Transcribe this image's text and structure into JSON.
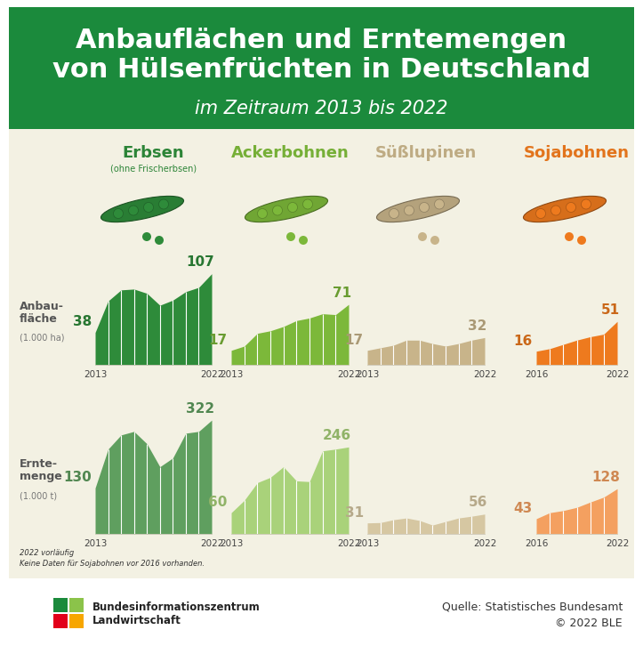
{
  "header": {
    "title": "Anbauflächen und Erntemengen\nvon Hülsenfrüchten in Deutschland",
    "subtitle": "im Zeitraum 2013 bis 2022"
  },
  "chart_data": [
    {
      "type": "area",
      "title": "Erbsen",
      "subtitle": "(ohne Frischerbsen)",
      "ylabel": "Anbau-\nfläche",
      "ylabel_unit": "(1.000 ha)",
      "x": [
        2013,
        2014,
        2015,
        2016,
        2017,
        2018,
        2019,
        2020,
        2021,
        2022
      ],
      "values": [
        38,
        75,
        88,
        89,
        84,
        70,
        76,
        86,
        91,
        107
      ],
      "value_labels": [
        "38",
        null,
        null,
        null,
        null,
        null,
        null,
        null,
        null,
        "107"
      ],
      "data_labels": true,
      "color": "#2e8b3a",
      "xlim": [
        2013,
        2022
      ],
      "xticks": [
        2013,
        2022
      ],
      "ylim": [
        0,
        115
      ],
      "tick_labels": "x"
    },
    {
      "type": "area",
      "title": "Ackerbohnen",
      "x": [
        2013,
        2014,
        2015,
        2016,
        2017,
        2018,
        2019,
        2020,
        2021,
        2022
      ],
      "values": [
        17,
        22,
        37,
        40,
        45,
        52,
        55,
        60,
        59,
        71
      ],
      "value_labels": [
        "17",
        null,
        null,
        null,
        null,
        null,
        null,
        null,
        null,
        "71"
      ],
      "data_labels": true,
      "color": "#7cb83a",
      "xlim": [
        2013,
        2022
      ],
      "xticks": [
        2013,
        2022
      ],
      "ylim": [
        0,
        115
      ],
      "tick_labels": "x"
    },
    {
      "type": "area",
      "title": "Süßlupinen",
      "x": [
        2013,
        2014,
        2015,
        2016,
        2017,
        2018,
        2019,
        2020,
        2021,
        2022
      ],
      "values": [
        17,
        20,
        23,
        29,
        29,
        25,
        22,
        25,
        29,
        32
      ],
      "value_labels": [
        "17",
        null,
        null,
        null,
        null,
        null,
        null,
        null,
        null,
        "32"
      ],
      "data_labels": true,
      "color": "#c8b48a",
      "xlim": [
        2013,
        2022
      ],
      "xticks": [
        2013,
        2022
      ],
      "ylim": [
        0,
        115
      ],
      "tick_labels": "x"
    },
    {
      "type": "area",
      "title": "Sojabohnen",
      "x": [
        2016,
        2017,
        2018,
        2019,
        2020,
        2021,
        2022
      ],
      "values": [
        16,
        19,
        24,
        29,
        33,
        36,
        51
      ],
      "value_labels": [
        "16",
        null,
        null,
        null,
        null,
        null,
        "51"
      ],
      "data_labels": true,
      "color": "#ee7a1e",
      "xlim": [
        2016,
        2022
      ],
      "xticks": [
        2016,
        2022
      ],
      "ylim": [
        0,
        115
      ],
      "tick_labels": "x"
    },
    {
      "type": "area",
      "ylabel": "Ernte-\nmenge",
      "ylabel_unit": "(1.000 t)",
      "x": [
        2013,
        2014,
        2015,
        2016,
        2017,
        2018,
        2019,
        2020,
        2021,
        2022
      ],
      "values": [
        130,
        240,
        280,
        290,
        255,
        190,
        215,
        285,
        290,
        322
      ],
      "value_labels": [
        "130",
        null,
        null,
        null,
        null,
        null,
        null,
        null,
        null,
        "322"
      ],
      "data_labels": true,
      "color": "#5f9f5f",
      "xlim": [
        2013,
        2022
      ],
      "xticks": [
        2013,
        2022
      ],
      "ylim": [
        0,
        340
      ],
      "tick_labels": "x"
    },
    {
      "type": "area",
      "x": [
        2013,
        2014,
        2015,
        2016,
        2017,
        2018,
        2019,
        2020,
        2021,
        2022
      ],
      "values": [
        60,
        95,
        145,
        160,
        190,
        150,
        148,
        235,
        240,
        246
      ],
      "value_labels": [
        "60",
        null,
        null,
        null,
        null,
        null,
        null,
        null,
        null,
        "246"
      ],
      "data_labels": true,
      "color": "#a9d27a",
      "xlim": [
        2013,
        2022
      ],
      "xticks": [
        2013,
        2022
      ],
      "ylim": [
        0,
        340
      ],
      "tick_labels": "x"
    },
    {
      "type": "area",
      "x": [
        2013,
        2014,
        2015,
        2016,
        2017,
        2018,
        2019,
        2020,
        2021,
        2022
      ],
      "values": [
        31,
        32,
        40,
        45,
        38,
        25,
        35,
        45,
        50,
        56
      ],
      "value_labels": [
        "31",
        null,
        null,
        null,
        null,
        null,
        null,
        null,
        null,
        "56"
      ],
      "data_labels": true,
      "color": "#d6c7a2",
      "xlim": [
        2013,
        2022
      ],
      "xticks": [
        2013,
        2022
      ],
      "ylim": [
        0,
        340
      ],
      "tick_labels": "x"
    },
    {
      "type": "area",
      "x": [
        2016,
        2017,
        2018,
        2019,
        2020,
        2021,
        2022
      ],
      "values": [
        43,
        60,
        66,
        75,
        90,
        104,
        128
      ],
      "value_labels": [
        "43",
        null,
        null,
        null,
        null,
        null,
        "128"
      ],
      "data_labels": true,
      "color": "#f4a060",
      "xlim": [
        2016,
        2022
      ],
      "xticks": [
        2016,
        2022
      ],
      "ylim": [
        0,
        340
      ],
      "tick_labels": "x"
    }
  ],
  "footnotes": [
    "2022 vorläufig",
    "Keine Daten für Sojabohnen vor 2016 vorhanden."
  ],
  "footer": {
    "logo_text": "Bundesinformationszentrum\nLandwirtschaft",
    "source": "Quelle: Statistisches Bundesamt",
    "copyright": "© 2022 BLE"
  }
}
